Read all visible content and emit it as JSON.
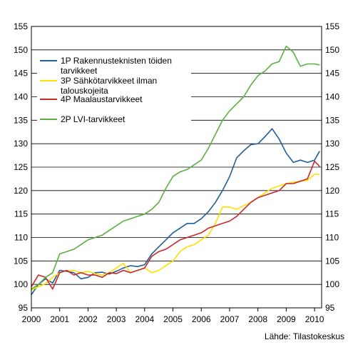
{
  "chart_data": {
    "type": "line",
    "title": "",
    "xlabel": "",
    "ylabel": "",
    "source": "Lähde: Tilastokeskus",
    "xlim": [
      2000.0,
      2010.25
    ],
    "ylim": [
      95,
      155
    ],
    "x_ticks": [
      "2000",
      "2001",
      "2002",
      "2003",
      "2004",
      "2005",
      "2006",
      "2007",
      "2008",
      "2009",
      "2010"
    ],
    "y_ticks": [
      "95",
      "100",
      "105",
      "110",
      "115",
      "120",
      "125",
      "130",
      "135",
      "140",
      "145",
      "150",
      "155"
    ],
    "grid": "horizontal",
    "legend_position": "top-left",
    "series": [
      {
        "name": "1P Rakennusteknisten töiden tarvikkeet",
        "color": "#1f5e99",
        "x": [
          2000.0,
          2000.25,
          2000.5,
          2000.75,
          2001.0,
          2001.25,
          2001.5,
          2001.75,
          2002.0,
          2002.25,
          2002.5,
          2002.75,
          2003.0,
          2003.25,
          2003.5,
          2003.75,
          2004.0,
          2004.25,
          2004.5,
          2004.75,
          2005.0,
          2005.25,
          2005.5,
          2005.75,
          2006.0,
          2006.25,
          2006.5,
          2006.75,
          2007.0,
          2007.25,
          2007.5,
          2007.75,
          2008.0,
          2008.25,
          2008.5,
          2008.75,
          2009.0,
          2009.25,
          2009.5,
          2009.75,
          2010.0,
          2010.17
        ],
        "y": [
          97.8,
          100.0,
          101.2,
          100.3,
          103.0,
          102.8,
          102.5,
          101.2,
          101.5,
          102.5,
          102.6,
          102.2,
          102.8,
          103.5,
          104.0,
          103.8,
          104.2,
          106.5,
          108.0,
          109.5,
          111.0,
          112.0,
          113.0,
          113.0,
          114.0,
          115.5,
          117.5,
          120.0,
          123.0,
          127.0,
          128.5,
          129.8,
          130.0,
          131.5,
          133.2,
          131.0,
          128.0,
          126.0,
          126.5,
          126.0,
          126.5,
          128.3
        ]
      },
      {
        "name": "3P Sähkötarvikkeet ilman talouskojeita",
        "color": "#ffe000",
        "x": [
          2000.0,
          2000.25,
          2000.5,
          2000.75,
          2001.0,
          2001.25,
          2001.5,
          2001.75,
          2002.0,
          2002.25,
          2002.5,
          2002.75,
          2003.0,
          2003.25,
          2003.5,
          2003.75,
          2004.0,
          2004.25,
          2004.5,
          2004.75,
          2005.0,
          2005.25,
          2005.5,
          2005.75,
          2006.0,
          2006.25,
          2006.5,
          2006.75,
          2007.0,
          2007.25,
          2007.5,
          2007.75,
          2008.0,
          2008.25,
          2008.5,
          2008.75,
          2009.0,
          2009.25,
          2009.5,
          2009.75,
          2010.0,
          2010.17
        ],
        "y": [
          98.8,
          99.5,
          100.2,
          101.5,
          102.5,
          103.0,
          103.0,
          102.5,
          102.8,
          102.3,
          102.0,
          102.5,
          103.5,
          104.5,
          102.5,
          103.0,
          103.5,
          102.5,
          103.0,
          104.0,
          105.0,
          107.0,
          108.0,
          108.5,
          109.5,
          110.5,
          113.0,
          116.5,
          116.5,
          116.0,
          116.8,
          117.5,
          118.5,
          119.5,
          120.5,
          121.0,
          121.5,
          121.8,
          122.0,
          122.2,
          123.5,
          123.5
        ]
      },
      {
        "name": "4P Maalaustarvikkeet",
        "color": "#c8282c",
        "x": [
          2000.0,
          2000.25,
          2000.5,
          2000.75,
          2001.0,
          2001.25,
          2001.5,
          2001.75,
          2002.0,
          2002.25,
          2002.5,
          2002.75,
          2003.0,
          2003.25,
          2003.5,
          2003.75,
          2004.0,
          2004.25,
          2004.5,
          2004.75,
          2005.0,
          2005.25,
          2005.5,
          2005.75,
          2006.0,
          2006.25,
          2006.5,
          2006.75,
          2007.0,
          2007.25,
          2007.5,
          2007.75,
          2008.0,
          2008.25,
          2008.5,
          2008.75,
          2009.0,
          2009.25,
          2009.5,
          2009.75,
          2010.0,
          2010.17
        ],
        "y": [
          99.5,
          102.0,
          101.5,
          99.0,
          102.5,
          103.0,
          102.0,
          102.5,
          102.0,
          102.0,
          101.5,
          102.5,
          102.3,
          103.0,
          102.5,
          103.0,
          103.5,
          106.0,
          107.0,
          107.5,
          108.5,
          109.5,
          110.0,
          110.5,
          111.0,
          112.0,
          112.5,
          113.0,
          113.5,
          114.5,
          116.0,
          117.5,
          118.5,
          119.0,
          119.5,
          120.0,
          121.5,
          121.5,
          122.0,
          122.5,
          126.3,
          125.2
        ]
      },
      {
        "name": "2P LVI-tarvikkeet",
        "color": "#5ab040",
        "x": [
          2000.0,
          2000.25,
          2000.5,
          2000.75,
          2001.0,
          2001.25,
          2001.5,
          2001.75,
          2002.0,
          2002.25,
          2002.5,
          2002.75,
          2003.0,
          2003.25,
          2003.5,
          2003.75,
          2004.0,
          2004.25,
          2004.5,
          2004.75,
          2005.0,
          2005.25,
          2005.5,
          2005.75,
          2006.0,
          2006.25,
          2006.5,
          2006.75,
          2007.0,
          2007.25,
          2007.5,
          2007.75,
          2008.0,
          2008.25,
          2008.5,
          2008.75,
          2009.0,
          2009.25,
          2009.5,
          2009.75,
          2010.0,
          2010.17
        ],
        "y": [
          99.0,
          100.0,
          101.5,
          102.5,
          106.5,
          107.0,
          107.5,
          108.5,
          109.5,
          110.0,
          110.5,
          111.5,
          112.5,
          113.5,
          114.0,
          114.5,
          115.0,
          116.0,
          117.5,
          120.5,
          123.0,
          124.0,
          124.5,
          125.5,
          126.5,
          129.0,
          132.0,
          135.0,
          137.0,
          138.5,
          140.0,
          142.5,
          144.5,
          145.5,
          147.0,
          147.5,
          150.8,
          149.5,
          146.5,
          147.0,
          147.0,
          146.8
        ]
      }
    ]
  }
}
